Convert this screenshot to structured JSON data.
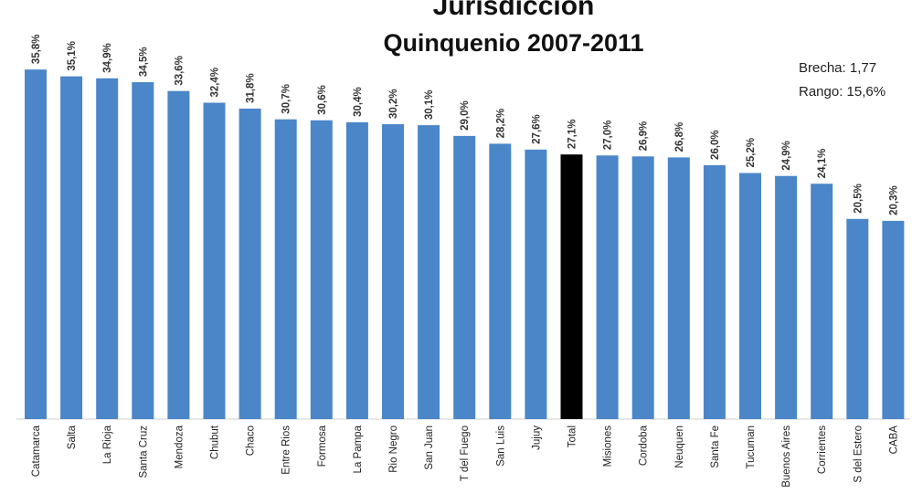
{
  "chart_data": {
    "type": "bar",
    "title": "Jurisdicción",
    "subtitle": "Quinquenio 2007-2011",
    "annotations": [
      "Brecha: 1,77",
      "Rango: 15,6%"
    ],
    "categories": [
      "Catamarca",
      "Salta",
      "La Rioja",
      "Santa Cruz",
      "Mendoza",
      "Chubut",
      "Chaco",
      "Entre Rios",
      "Formosa",
      "La Pampa",
      "Rio Negro",
      "San Juan",
      "T del Fuego",
      "San Luis",
      "Jujuy",
      "Total",
      "Misiones",
      "Cordoba",
      "Neuquen",
      "Santa Fe",
      "Tucuman",
      "Buenos Aires",
      "Corrientes",
      "S del Estero",
      "CABA"
    ],
    "values": [
      35.8,
      35.1,
      34.9,
      34.5,
      33.6,
      32.4,
      31.8,
      30.7,
      30.6,
      30.4,
      30.2,
      30.1,
      29.0,
      28.2,
      27.6,
      27.1,
      27.0,
      26.9,
      26.8,
      26.0,
      25.2,
      24.9,
      24.1,
      20.5,
      20.3
    ],
    "value_labels": [
      "35,8%",
      "35,1%",
      "34,9%",
      "34,5%",
      "33,6%",
      "32,4%",
      "31,8%",
      "30,7%",
      "30,6%",
      "30,4%",
      "30,2%",
      "30,1%",
      "29,0%",
      "28,2%",
      "27,6%",
      "27,1%",
      "27,0%",
      "26,9%",
      "26,8%",
      "26,0%",
      "25,2%",
      "24,9%",
      "24,1%",
      "20,5%",
      "20,3%"
    ],
    "highlight_category": "Total",
    "bar_color": "#4a86c8",
    "highlight_color": "#000000",
    "ylim": [
      0,
      36
    ],
    "grid": false,
    "xlabel": "",
    "ylabel": ""
  }
}
